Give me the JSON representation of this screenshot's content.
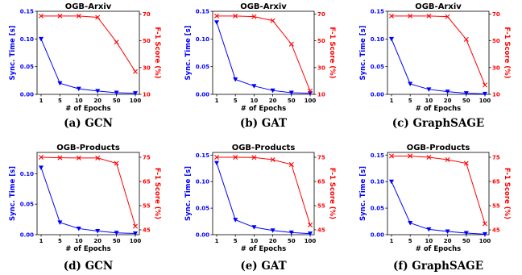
{
  "colors": {
    "sync": "#0000ff",
    "f1": "#ff0000"
  },
  "chart_data": [
    {
      "type": "line",
      "title": "OGB-Arxiv",
      "caption": "(a) GCN",
      "xlabel": "# of Epochs",
      "ylabel_left": "Sync. Time [s]",
      "ylabel_right": "F-1 Score (%)",
      "categories": [
        "1",
        "5",
        "10",
        "20",
        "50",
        "100"
      ],
      "left_ticks": [
        "0.00",
        "0.05",
        "0.10",
        "0.15"
      ],
      "left_ylim": [
        0,
        0.15
      ],
      "right_ticks": [
        "10",
        "30",
        "50",
        "70"
      ],
      "right_ylim": [
        10,
        72
      ],
      "series": [
        {
          "axis": "left",
          "marker": "triangle-down",
          "values": [
            0.1,
            0.02,
            0.01,
            0.006,
            0.003,
            0.002
          ]
        },
        {
          "axis": "right",
          "marker": "x",
          "values": [
            68.5,
            68.5,
            68.5,
            67.5,
            49.0,
            27.0
          ]
        }
      ]
    },
    {
      "type": "line",
      "title": "OGB-Arxiv",
      "caption": "(b) GAT",
      "xlabel": "# of Epochs",
      "ylabel_left": "Sync. Time [s]",
      "ylabel_right": "F-1 Score (%)",
      "categories": [
        "1",
        "5",
        "10",
        "20",
        "50",
        "100"
      ],
      "left_ticks": [
        "0.00",
        "0.05",
        "0.10",
        "0.15"
      ],
      "left_ylim": [
        0,
        0.15
      ],
      "right_ticks": [
        "10",
        "30",
        "50",
        "70"
      ],
      "right_ylim": [
        10,
        72
      ],
      "series": [
        {
          "axis": "left",
          "marker": "triangle-down",
          "values": [
            0.13,
            0.027,
            0.015,
            0.007,
            0.003,
            0.002
          ]
        },
        {
          "axis": "right",
          "marker": "x",
          "values": [
            68.5,
            68.5,
            68.0,
            65.0,
            47.5,
            12.5
          ]
        }
      ]
    },
    {
      "type": "line",
      "title": "OGB-Arxiv",
      "caption": "(c) GraphSAGE",
      "xlabel": "# of Epochs",
      "ylabel_left": "Sync. Time [s]",
      "ylabel_right": "F-1 Score (%)",
      "categories": [
        "1",
        "5",
        "10",
        "20",
        "50",
        "100"
      ],
      "left_ticks": [
        "0.00",
        "0.05",
        "0.10",
        "0.15"
      ],
      "left_ylim": [
        0,
        0.15
      ],
      "right_ticks": [
        "10",
        "30",
        "50",
        "70"
      ],
      "right_ylim": [
        10,
        72
      ],
      "series": [
        {
          "axis": "left",
          "marker": "triangle-down",
          "values": [
            0.1,
            0.019,
            0.009,
            0.005,
            0.002,
            0.001
          ]
        },
        {
          "axis": "right",
          "marker": "x",
          "values": [
            68.5,
            68.5,
            68.5,
            68.0,
            51.0,
            17.0
          ]
        }
      ]
    },
    {
      "type": "line",
      "title": "OGB-Products",
      "caption": "(d) GCN",
      "xlabel": "# of Epochs",
      "ylabel_left": "Sync. Time [s]",
      "ylabel_right": "F-1 Score (%)",
      "categories": [
        "1",
        "5",
        "10",
        "20",
        "50",
        "100"
      ],
      "left_ticks": [
        "0.00",
        "0.05",
        "0.10"
      ],
      "left_ylim": [
        0,
        0.135
      ],
      "right_ticks": [
        "45",
        "55",
        "65",
        "75"
      ],
      "right_ylim": [
        43,
        77
      ],
      "series": [
        {
          "axis": "left",
          "marker": "triangle-down",
          "values": [
            0.11,
            0.02,
            0.01,
            0.006,
            0.003,
            0.002
          ]
        },
        {
          "axis": "right",
          "marker": "x",
          "values": [
            75.0,
            74.8,
            74.7,
            74.7,
            72.5,
            46.5
          ]
        }
      ]
    },
    {
      "type": "line",
      "title": "OGB-Products",
      "caption": "(e) GAT",
      "xlabel": "# of Epochs",
      "ylabel_left": "Sync. Time [s]",
      "ylabel_right": "F-1 Score (%)",
      "categories": [
        "1",
        "5",
        "10",
        "20",
        "50",
        "100"
      ],
      "left_ticks": [
        "0.00",
        "0.05",
        "0.10",
        "0.15"
      ],
      "left_ylim": [
        0,
        0.155
      ],
      "right_ticks": [
        "45",
        "55",
        "65",
        "75"
      ],
      "right_ylim": [
        43,
        77
      ],
      "series": [
        {
          "axis": "left",
          "marker": "triangle-down",
          "values": [
            0.135,
            0.028,
            0.014,
            0.008,
            0.004,
            0.002
          ]
        },
        {
          "axis": "right",
          "marker": "x",
          "values": [
            75.0,
            75.0,
            74.9,
            74.0,
            72.0,
            47.0
          ]
        }
      ]
    },
    {
      "type": "line",
      "title": "OGB-Products",
      "caption": "(f) GraphSAGE",
      "xlabel": "# of Epochs",
      "ylabel_left": "Sync. Time [s]",
      "ylabel_right": "F-1 Score (%)",
      "categories": [
        "1",
        "5",
        "10",
        "20",
        "50",
        "100"
      ],
      "left_ticks": [
        "0.00",
        "0.05",
        "0.10",
        "0.15"
      ],
      "left_ylim": [
        0,
        0.155
      ],
      "right_ticks": [
        "45",
        "55",
        "65",
        "75"
      ],
      "right_ylim": [
        43,
        77
      ],
      "series": [
        {
          "axis": "left",
          "marker": "triangle-down",
          "values": [
            0.1,
            0.022,
            0.01,
            0.006,
            0.003,
            0.001
          ]
        },
        {
          "axis": "right",
          "marker": "x",
          "values": [
            75.5,
            75.5,
            75.0,
            74.0,
            72.5,
            47.5
          ]
        }
      ]
    }
  ]
}
